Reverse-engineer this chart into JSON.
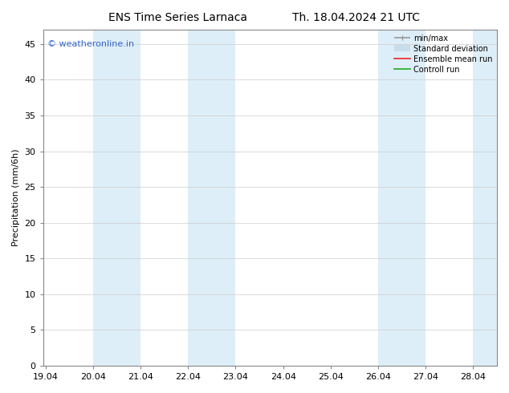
{
  "title_left": "ENS Time Series Larnaca",
  "title_right": "Th. 18.04.2024 21 UTC",
  "xlabel_ticks": [
    "19.04",
    "20.04",
    "21.04",
    "22.04",
    "23.04",
    "24.04",
    "25.04",
    "26.04",
    "27.04",
    "28.04"
  ],
  "ylabel": "Precipitation (mm/6h)",
  "ylim": [
    0,
    47
  ],
  "yticks": [
    0,
    5,
    10,
    15,
    20,
    25,
    30,
    35,
    40,
    45
  ],
  "background_color": "#ffffff",
  "plot_bg_color": "#ffffff",
  "band_color": "#ddeef8",
  "shaded_bands": [
    {
      "x_start": 1,
      "x_end": 2
    },
    {
      "x_start": 3,
      "x_end": 4
    },
    {
      "x_start": 7,
      "x_end": 8
    },
    {
      "x_start": 9,
      "x_end": 9.5
    }
  ],
  "watermark": "© weatheronline.in",
  "watermark_color": "#3366cc",
  "legend_items": [
    {
      "label": "min/max",
      "color": "#999999",
      "lw": 1.2,
      "style": "minmax"
    },
    {
      "label": "Standard deviation",
      "color": "#c8dcea",
      "lw": 6,
      "style": "thick"
    },
    {
      "label": "Ensemble mean run",
      "color": "#ee2222",
      "lw": 1.2,
      "style": "line"
    },
    {
      "label": "Controll run",
      "color": "#22aa22",
      "lw": 1.2,
      "style": "line"
    }
  ],
  "tick_positions": [
    0,
    1,
    2,
    3,
    4,
    5,
    6,
    7,
    8,
    9
  ],
  "xlim": [
    -0.05,
    9.5
  ],
  "title_fontsize": 10,
  "label_fontsize": 8,
  "tick_fontsize": 8
}
